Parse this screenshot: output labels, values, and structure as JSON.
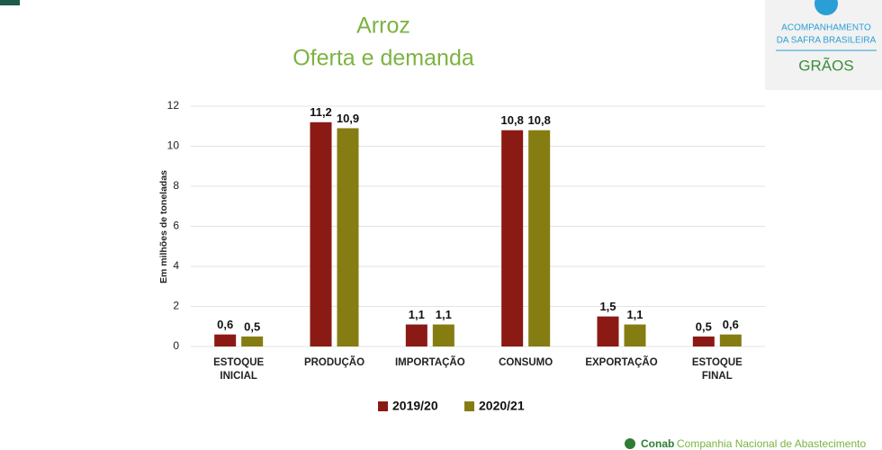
{
  "chart_data": {
    "type": "bar",
    "title": "Arroz",
    "subtitle": "Oferta e demanda",
    "y_label": "Em milhões de toneladas",
    "categories": [
      "ESTOQUE INICIAL",
      "PRODUÇÃO",
      "IMPORTAÇÃO",
      "CONSUMO",
      "EXPORTAÇÃO",
      "ESTOQUE FINAL"
    ],
    "series": [
      {
        "name": "2019/20",
        "color": "#8b1a14",
        "values": [
          0.6,
          11.2,
          1.1,
          10.8,
          1.5,
          0.5
        ],
        "value_labels": [
          "0,6",
          "11,2",
          "1,1",
          "10,8",
          "1,5",
          "0,5"
        ]
      },
      {
        "name": "2020/21",
        "color": "#857d12",
        "values": [
          0.5,
          10.9,
          1.1,
          10.8,
          1.1,
          0.6
        ],
        "value_labels": [
          "0,5",
          "10,9",
          "1,1",
          "10,8",
          "1,1",
          "0,6"
        ]
      }
    ],
    "ylim": [
      0,
      12
    ],
    "yticks": [
      0,
      2,
      4,
      6,
      8,
      10,
      12
    ],
    "grid": true,
    "legend": "bottom"
  },
  "logo": {
    "line1": "ACOMPANHAMENTO",
    "line2": "DA SAFRA BRASILEIRA",
    "line3": "GRÃOS"
  },
  "footer": {
    "brand": "Conab",
    "name": "Companhia Nacional de Abastecimento"
  }
}
